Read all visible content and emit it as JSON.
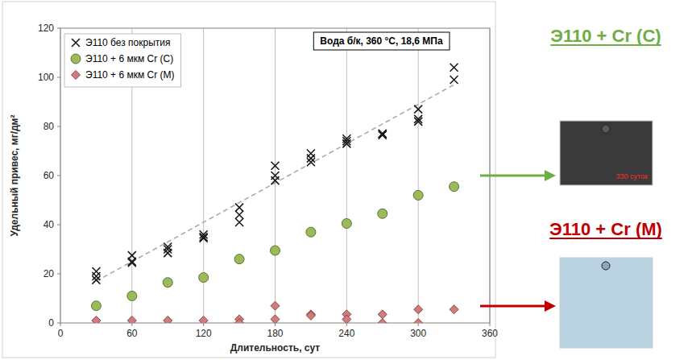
{
  "chart_data": {
    "type": "scatter",
    "x_label": "Длительность, сут",
    "y_label": "Удельный привес, мг/дм²",
    "annotation": "Вода б/к, 360 °C, 18,6 МПа",
    "xlim": [
      0,
      360
    ],
    "xticks": [
      0,
      60,
      120,
      180,
      240,
      300,
      360
    ],
    "ylim": [
      0,
      120
    ],
    "yticks": [
      0,
      20,
      40,
      60,
      80,
      100,
      120
    ],
    "grid": "x",
    "legend": "upper left",
    "series": [
      {
        "name": "Э110 без покрытия",
        "color": "#1a1a1a",
        "marker": "x",
        "x": [
          30,
          30,
          30,
          60,
          60,
          60,
          90,
          90,
          90,
          120,
          120,
          120,
          150,
          150,
          150,
          180,
          180,
          180,
          210,
          210,
          210,
          240,
          240,
          240,
          270,
          270,
          270,
          300,
          300,
          300,
          330,
          330
        ],
        "values": [
          21,
          19,
          17.5,
          27.5,
          25,
          24.5,
          31,
          30,
          28.5,
          36,
          35,
          34.5,
          47,
          44,
          41,
          64,
          60,
          58,
          69,
          67,
          65.5,
          75,
          74,
          73,
          77,
          77,
          76.5,
          87,
          83,
          82,
          104,
          99
        ]
      },
      {
        "name": "Э110 + 6 мкм Cr (С)",
        "color": "#9bbb59",
        "marker": "circle",
        "x": [
          30,
          60,
          90,
          120,
          150,
          180,
          210,
          240,
          270,
          300,
          330
        ],
        "values": [
          7,
          11,
          16.5,
          18.5,
          26,
          29.5,
          37,
          40.5,
          44.5,
          52,
          55.5
        ]
      },
      {
        "name": "Э110 + 6 мкм Cr (М)",
        "color": "#d47a7a",
        "marker": "diamond",
        "x": [
          30,
          60,
          90,
          120,
          150,
          150,
          180,
          180,
          210,
          210,
          240,
          240,
          270,
          270,
          300,
          300,
          330
        ],
        "values": [
          1,
          1,
          1,
          1,
          1.5,
          0,
          7,
          1.5,
          3.5,
          3,
          3.5,
          1.5,
          3.5,
          0,
          5.5,
          0,
          5.5
        ]
      },
      {
        "type": "line",
        "color": "#a6a6a6",
        "line_style": "dashed",
        "x": [
          30,
          330
        ],
        "values": [
          17,
          97
        ]
      }
    ]
  },
  "side_panels": [
    {
      "label": "Э110 + Cr (С)",
      "color": "#70ad47",
      "photo_text": "330 суток"
    },
    {
      "label": "Э110 + Cr (М)",
      "color": "#c00000"
    }
  ]
}
